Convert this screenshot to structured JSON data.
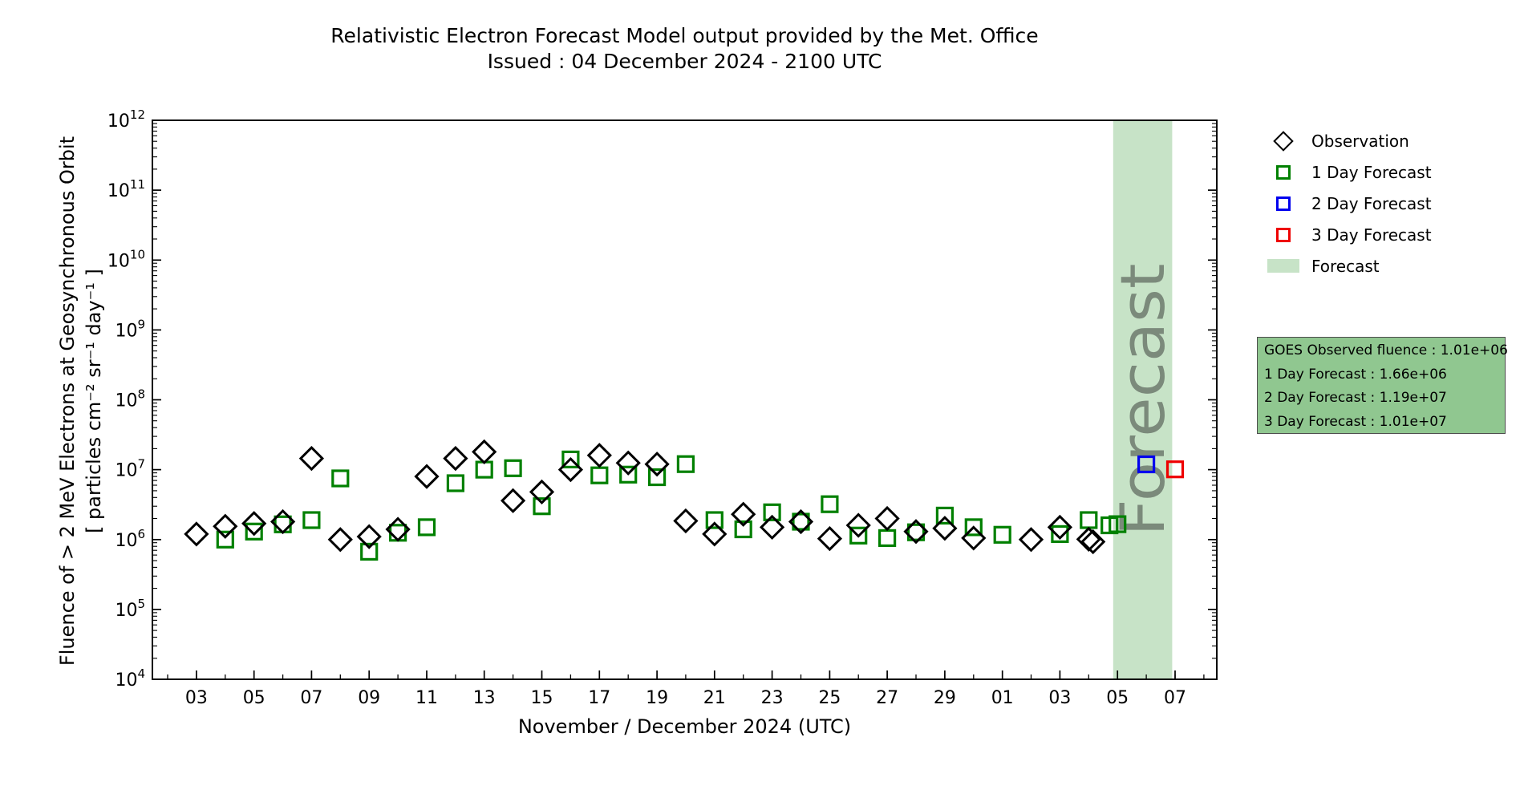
{
  "title": {
    "line1": "Relativistic Electron Forecast Model output provided by the Met. Office",
    "line2": "Issued : 04 December 2024 - 2100 UTC"
  },
  "legend": {
    "items": [
      {
        "label": "Observation",
        "marker": "diamond",
        "color": "#000000"
      },
      {
        "label": "1 Day Forecast",
        "marker": "square",
        "color": "#008000"
      },
      {
        "label": "2 Day Forecast",
        "marker": "square",
        "color": "#0000ee"
      },
      {
        "label": "3 Day Forecast",
        "marker": "square",
        "color": "#ee0000"
      },
      {
        "label": "Forecast",
        "marker": "patch",
        "color": "#c7e3c7"
      }
    ]
  },
  "info_box": {
    "fill": "#90c790",
    "lines": [
      "GOES Observed fluence : 1.01e+06",
      "1 Day Forecast : 1.66e+06",
      "2 Day Forecast : 1.19e+07",
      "3 Day Forecast : 1.01e+07"
    ]
  },
  "chart_data": {
    "type": "scatter",
    "y_scale": "log",
    "x_axis": {
      "label": "November / December 2024 (UTC)",
      "domain_days": [
        -1.53,
        35.45
      ],
      "major_tick_days": [
        0,
        2,
        4,
        6,
        8,
        10,
        12,
        14,
        16,
        18,
        20,
        22,
        24,
        26,
        28,
        30,
        32,
        34
      ],
      "major_tick_labels": [
        "03",
        "05",
        "07",
        "09",
        "11",
        "13",
        "15",
        "17",
        "19",
        "21",
        "23",
        "25",
        "27",
        "29",
        "01",
        "03",
        "05",
        "07"
      ],
      "minor_tick_step_days": 1
    },
    "y_axis": {
      "label_line1": "Fluence of > 2 MeV Electrons at Geosynchronous Orbit",
      "label_line2": "[ particles cm⁻² sr⁻¹ day⁻¹ ]",
      "exp_min": 4,
      "exp_max": 12,
      "major_ticks": [
        "10^4",
        "10^5",
        "10^6",
        "10^7",
        "10^8",
        "10^9",
        "10^10",
        "10^11",
        "10^12"
      ]
    },
    "band": {
      "start_day": 31.85,
      "end_day": 33.9,
      "label": "Forecast",
      "fill": "#c7e3c7",
      "label_color": "#7b8a7b"
    },
    "series": [
      {
        "name": "Observation",
        "marker": "diamond",
        "color": "#000000",
        "points": [
          [
            0,
            "Nov 03",
            1200000.0
          ],
          [
            1,
            "Nov 04",
            1550000.0
          ],
          [
            2,
            "Nov 05",
            1700000.0
          ],
          [
            3,
            "Nov 06",
            1800000.0
          ],
          [
            4,
            "Nov 07",
            14500000.0
          ],
          [
            5,
            "Nov 08",
            1000000.0
          ],
          [
            6,
            "Nov 09",
            1100000.0
          ],
          [
            7,
            "Nov 10",
            1400000.0
          ],
          [
            8,
            "Nov 11",
            8000000.0
          ],
          [
            9,
            "Nov 12",
            14500000.0
          ],
          [
            10,
            "Nov 13",
            18000000.0
          ],
          [
            11,
            "Nov 14",
            3600000.0
          ],
          [
            12,
            "Nov 15",
            4800000.0
          ],
          [
            13,
            "Nov 16",
            10000000.0
          ],
          [
            14,
            "Nov 17",
            16000000.0
          ],
          [
            15,
            "Nov 18",
            12500000.0
          ],
          [
            16,
            "Nov 19",
            12000000.0
          ],
          [
            17,
            "Nov 20",
            1850000.0
          ],
          [
            18,
            "Nov 21",
            1200000.0
          ],
          [
            19,
            "Nov 22",
            2300000.0
          ],
          [
            20,
            "Nov 23",
            1500000.0
          ],
          [
            21,
            "Nov 24",
            1800000.0
          ],
          [
            22,
            "Nov 25",
            1030000.0
          ],
          [
            23,
            "Nov 26",
            1600000.0
          ],
          [
            24,
            "Nov 27",
            2000000.0
          ],
          [
            25,
            "Nov 28",
            1300000.0
          ],
          [
            26,
            "Nov 29",
            1450000.0
          ],
          [
            27,
            "Nov 30",
            1050000.0
          ],
          [
            29,
            "Dec 02",
            1000000.0
          ],
          [
            30,
            "Dec 03",
            1500000.0
          ],
          [
            31,
            "Dec 04",
            1010000.0
          ]
        ]
      },
      {
        "name": "1 Day Forecast",
        "marker": "square",
        "color": "#008000",
        "points": [
          [
            1,
            "Nov 04",
            1000000.0
          ],
          [
            2,
            "Nov 05",
            1300000.0
          ],
          [
            3,
            "Nov 06",
            1650000.0
          ],
          [
            4,
            "Nov 07",
            1900000.0
          ],
          [
            5,
            "Nov 08",
            7500000.0
          ],
          [
            6,
            "Nov 09",
            670000.0
          ],
          [
            7,
            "Nov 10",
            1250000.0
          ],
          [
            8,
            "Nov 11",
            1500000.0
          ],
          [
            9,
            "Nov 12",
            6400000.0
          ],
          [
            10,
            "Nov 13",
            10000000.0
          ],
          [
            11,
            "Nov 14",
            10500000.0
          ],
          [
            12,
            "Nov 15",
            3000000.0
          ],
          [
            13,
            "Nov 16",
            14000000.0
          ],
          [
            14,
            "Nov 17",
            8300000.0
          ],
          [
            15,
            "Nov 18",
            8500000.0
          ],
          [
            16,
            "Nov 19",
            7800000.0
          ],
          [
            17,
            "Nov 20",
            12000000.0
          ],
          [
            18,
            "Nov 21",
            1900000.0
          ],
          [
            19,
            "Nov 22",
            1400000.0
          ],
          [
            20,
            "Nov 23",
            2450000.0
          ],
          [
            21,
            "Nov 24",
            1800000.0
          ],
          [
            22,
            "Nov 25",
            3200000.0
          ],
          [
            23,
            "Nov 26",
            1140000.0
          ],
          [
            24,
            "Nov 27",
            1050000.0
          ],
          [
            25,
            "Nov 28",
            1270000.0
          ],
          [
            26,
            "Nov 29",
            2200000.0
          ],
          [
            27,
            "Nov 30",
            1500000.0
          ],
          [
            28,
            "Dec 01",
            1170000.0
          ],
          [
            30,
            "Dec 03",
            1200000.0
          ],
          [
            31,
            "Dec 04",
            1900000.0
          ],
          [
            32,
            "Dec 05",
            1660000.0
          ]
        ]
      },
      {
        "name": "2 Day Forecast",
        "marker": "square",
        "color": "#0000ee",
        "points": [
          [
            33,
            "Dec 06",
            11900000.0
          ]
        ]
      },
      {
        "name": "3 Day Forecast",
        "marker": "square",
        "color": "#ee0000",
        "points": [
          [
            34,
            "Dec 07",
            10100000.0
          ]
        ]
      }
    ],
    "extra_markers": [
      {
        "series": 0,
        "day": 31.15,
        "value": 930000.0
      },
      {
        "series": 1,
        "day": 31.72,
        "value": 1600000.0
      }
    ]
  }
}
